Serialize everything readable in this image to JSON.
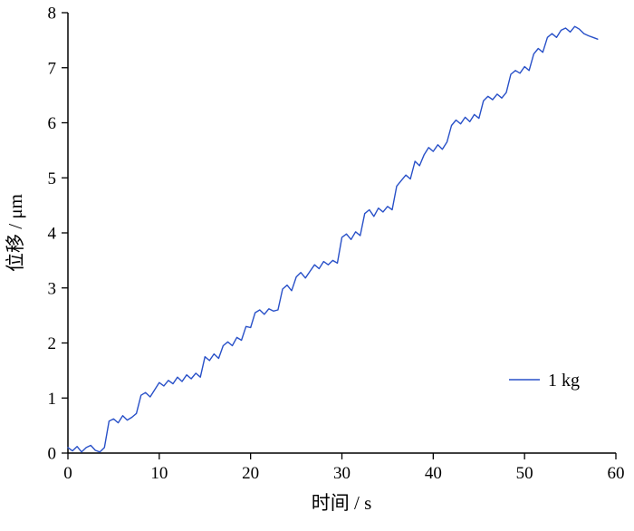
{
  "chart_data": {
    "type": "line",
    "title": "",
    "xlabel": "时间 / s",
    "ylabel": "位移 / μm",
    "xlim": [
      0,
      60
    ],
    "ylim": [
      0,
      8
    ],
    "xticks": [
      0,
      10,
      20,
      30,
      40,
      50,
      60
    ],
    "yticks": [
      0,
      1,
      2,
      3,
      4,
      5,
      6,
      7,
      8
    ],
    "grid": false,
    "axis_color": "#000000",
    "legend": {
      "position": "lower right",
      "entries": [
        {
          "label": "1 kg",
          "color": "#2850c8"
        }
      ]
    },
    "series": [
      {
        "name": "1 kg",
        "color": "#2850c8",
        "x": [
          0,
          0.5,
          1,
          1.5,
          2,
          2.5,
          3,
          3.5,
          4,
          4.5,
          5,
          5.5,
          6,
          6.5,
          7,
          7.5,
          8,
          8.5,
          9,
          9.5,
          10,
          10.5,
          11,
          11.5,
          12,
          12.5,
          13,
          13.5,
          14,
          14.5,
          15,
          15.5,
          16,
          16.5,
          17,
          17.5,
          18,
          18.5,
          19,
          19.5,
          20,
          20.5,
          21,
          21.5,
          22,
          22.5,
          23,
          23.5,
          24,
          24.5,
          25,
          25.5,
          26,
          26.5,
          27,
          27.5,
          28,
          28.5,
          29,
          29.5,
          30,
          30.5,
          31,
          31.5,
          32,
          32.5,
          33,
          33.5,
          34,
          34.5,
          35,
          35.5,
          36,
          36.5,
          37,
          37.5,
          38,
          38.5,
          39,
          39.5,
          40,
          40.5,
          41,
          41.5,
          42,
          42.5,
          43,
          43.5,
          44,
          44.5,
          45,
          45.5,
          46,
          46.5,
          47,
          47.5,
          48,
          48.5,
          49,
          49.5,
          50,
          50.5,
          51,
          51.5,
          52,
          52.5,
          53,
          53.5,
          54,
          54.5,
          55,
          55.5,
          56,
          56.5,
          57,
          57.5,
          58
        ],
        "y": [
          0.1,
          0.04,
          0.12,
          0.02,
          0.1,
          0.14,
          0.05,
          0.02,
          0.1,
          0.58,
          0.62,
          0.55,
          0.68,
          0.6,
          0.65,
          0.72,
          1.05,
          1.1,
          1.02,
          1.15,
          1.28,
          1.22,
          1.32,
          1.26,
          1.38,
          1.3,
          1.42,
          1.35,
          1.45,
          1.38,
          1.75,
          1.68,
          1.8,
          1.72,
          1.95,
          2.02,
          1.95,
          2.1,
          2.05,
          2.3,
          2.28,
          2.55,
          2.6,
          2.52,
          2.62,
          2.58,
          2.6,
          2.98,
          3.05,
          2.95,
          3.2,
          3.28,
          3.18,
          3.3,
          3.42,
          3.35,
          3.48,
          3.42,
          3.5,
          3.45,
          3.92,
          3.98,
          3.88,
          4.02,
          3.95,
          4.35,
          4.42,
          4.3,
          4.45,
          4.38,
          4.48,
          4.42,
          4.85,
          4.95,
          5.05,
          4.98,
          5.3,
          5.22,
          5.42,
          5.55,
          5.48,
          5.6,
          5.52,
          5.65,
          5.95,
          6.05,
          5.98,
          6.1,
          6.02,
          6.15,
          6.08,
          6.4,
          6.48,
          6.42,
          6.52,
          6.45,
          6.55,
          6.88,
          6.95,
          6.9,
          7.02,
          6.95,
          7.25,
          7.35,
          7.28,
          7.55,
          7.62,
          7.55,
          7.68,
          7.72,
          7.65,
          7.75,
          7.7,
          7.62,
          7.58,
          7.55,
          7.52
        ]
      }
    ]
  }
}
